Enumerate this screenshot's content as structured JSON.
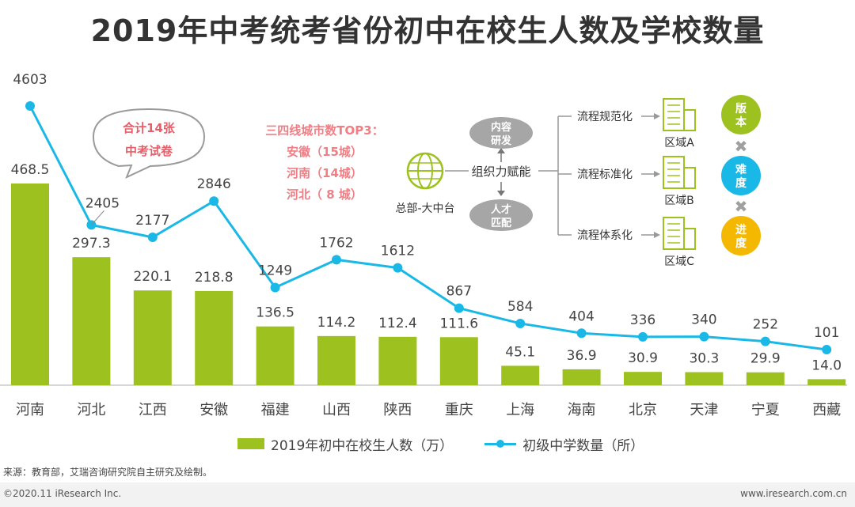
{
  "title": "2019年中考统考省份初中在校生人数及学校数量",
  "chart_data": {
    "type": "bar+line",
    "categories": [
      "河南",
      "河北",
      "江西",
      "安徽",
      "福建",
      "山西",
      "陕西",
      "重庆",
      "上海",
      "海南",
      "北京",
      "天津",
      "宁夏",
      "西藏"
    ],
    "series": [
      {
        "name": "2019年初中在校生人数（万）",
        "type": "bar",
        "values": [
          468.5,
          297.3,
          220.1,
          218.8,
          136.5,
          114.2,
          112.4,
          111.6,
          45.1,
          36.9,
          30.9,
          30.3,
          29.9,
          14.0
        ],
        "labels": [
          "468.5",
          "297.3",
          "220.1",
          "218.8",
          "136.5",
          "114.2",
          "112.4",
          "111.6",
          "45.1",
          "36.9",
          "30.9",
          "30.3",
          "29.9",
          "14.0"
        ],
        "color": "#9dc21f"
      },
      {
        "name": "初级中学数量（所）",
        "type": "line",
        "values": [
          4603,
          2405,
          2177,
          2846,
          1249,
          1762,
          1612,
          867,
          584,
          404,
          336,
          340,
          252,
          101
        ],
        "labels": [
          "4603",
          "2405",
          "2177",
          "2846",
          "1249",
          "1762",
          "1612",
          "867",
          "584",
          "404",
          "336",
          "340",
          "252",
          "101"
        ],
        "color": "#1ab8e6"
      }
    ]
  },
  "annotations": {
    "bubble": {
      "line1": "合计14张",
      "line2": "中考试卷"
    },
    "tier": {
      "title": "三四线城市数TOP3：",
      "items": [
        "安徽（15城）",
        "河南（14城）",
        "河北（ 8 城）"
      ]
    }
  },
  "diagram": {
    "hq_label": "总部-大中台",
    "center_label": "组织力赋能",
    "top_node": [
      "内容",
      "研发"
    ],
    "bottom_node": [
      "人才",
      "匹配"
    ],
    "branches": [
      "流程规范化",
      "流程标准化",
      "流程体系化"
    ],
    "regions": [
      "区域A",
      "区域B",
      "区域C"
    ],
    "badges": [
      [
        "版",
        "本"
      ],
      [
        "难",
        "度"
      ],
      [
        "进",
        "度"
      ]
    ],
    "badge_colors": [
      "#9dc21f",
      "#1ab8e6",
      "#f5b800"
    ],
    "times_symbol": "✖"
  },
  "source": "来源：教育部，艾瑞咨询研究院自主研究及绘制。",
  "copyright": "©2020.11 iResearch Inc.",
  "website": "www.iresearch.com.cn"
}
